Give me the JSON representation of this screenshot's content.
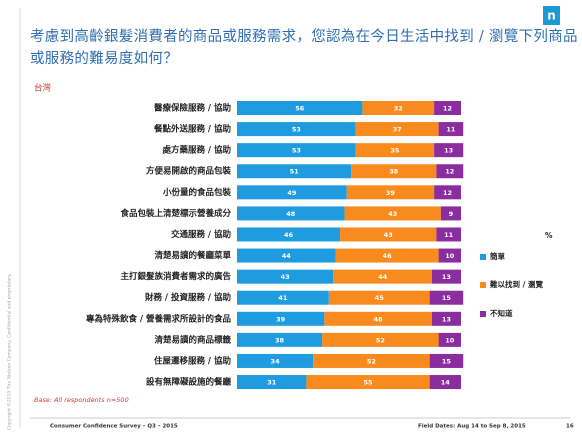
{
  "logo": "n",
  "chart_data": {
    "type": "stacked-bar-horizontal",
    "title": "考慮到高齡銀髮消費者的商品或服務需求，您認為在今日生活中找到 / 瀏覽下列商品或服務的難易度如何？",
    "subtitle": "台灣",
    "unit_label": "%",
    "base_note": "Base: All respondents n=500",
    "categories": [
      "醫療保險服務 / 協助",
      "餐點外送服務 / 協助",
      "處方藥服務 / 協助",
      "方便易開啟的商品包裝",
      "小份量的食品包裝",
      "食品包裝上清楚標示營養成分",
      "交通服務 / 協助",
      "清楚易讀的餐廳菜單",
      "主打銀髮族消費者需求的廣告",
      "財務 / 投資服務 / 協助",
      "專為特殊飲食 / 營養需求所設計的食品",
      "清楚易讀的商品標籤",
      "住屋遷移服務 / 協助",
      "設有無障礙設施的餐廳"
    ],
    "series": [
      {
        "name": "簡單",
        "color": "#1f9be0",
        "values": [
          56,
          53,
          53,
          51,
          49,
          48,
          46,
          44,
          43,
          41,
          39,
          38,
          34,
          31
        ]
      },
      {
        "name": "難以找到 / 瀏覽",
        "color": "#f98b1e",
        "values": [
          32,
          37,
          35,
          38,
          39,
          43,
          43,
          46,
          44,
          45,
          48,
          52,
          52,
          55
        ]
      },
      {
        "name": "不知道",
        "color": "#8a2d9f",
        "values": [
          12,
          11,
          13,
          12,
          12,
          9,
          11,
          10,
          13,
          15,
          13,
          10,
          15,
          14
        ]
      }
    ],
    "xlim": [
      0,
      100
    ]
  },
  "footer": {
    "survey": "Consumer Confidence Survey – Q3 – 2015",
    "dates": "Field Dates: Aug 14 to Sep 8, 2015",
    "page": "16",
    "copyright": "Copyright ©2015 The Nielsen Company. Confidential and proprietary."
  }
}
